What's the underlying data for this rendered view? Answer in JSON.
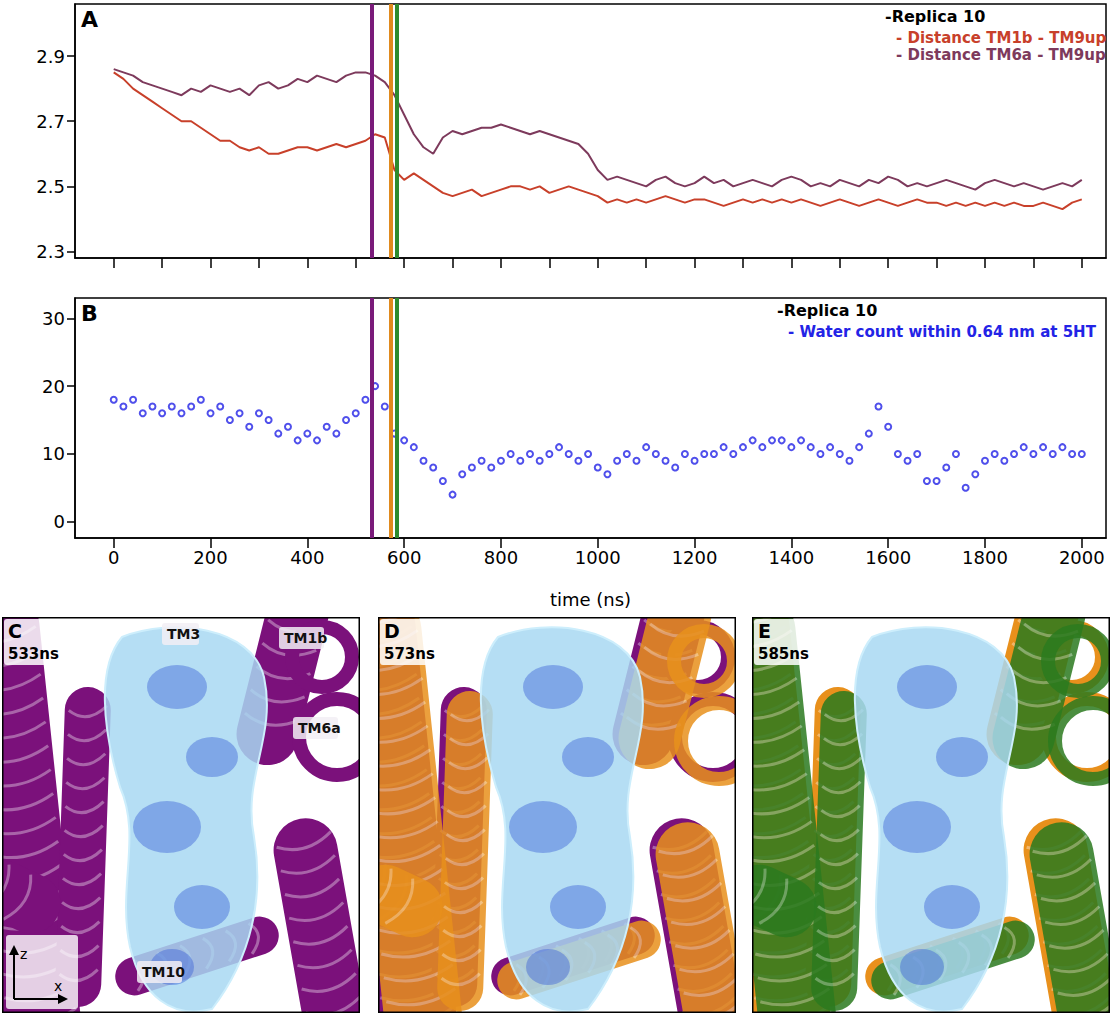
{
  "chart_data": [
    {
      "type": "line",
      "panel_label": "A",
      "legend_title": "-Replica 10",
      "x": [
        0,
        20,
        40,
        60,
        80,
        100,
        120,
        140,
        160,
        180,
        200,
        220,
        240,
        260,
        280,
        300,
        320,
        340,
        360,
        380,
        400,
        420,
        440,
        460,
        480,
        500,
        520,
        540,
        560,
        580,
        600,
        620,
        640,
        660,
        680,
        700,
        720,
        740,
        760,
        780,
        800,
        820,
        840,
        860,
        880,
        900,
        920,
        940,
        960,
        980,
        1000,
        1020,
        1040,
        1060,
        1080,
        1100,
        1120,
        1140,
        1160,
        1180,
        1200,
        1220,
        1240,
        1260,
        1280,
        1300,
        1320,
        1340,
        1360,
        1380,
        1400,
        1420,
        1440,
        1460,
        1480,
        1500,
        1520,
        1540,
        1560,
        1580,
        1600,
        1620,
        1640,
        1660,
        1680,
        1700,
        1720,
        1740,
        1760,
        1780,
        1800,
        1820,
        1840,
        1860,
        1880,
        1900,
        1920,
        1940,
        1960,
        1980,
        2000
      ],
      "series": [
        {
          "name": "- Distance TM1b - TM9up",
          "color": "#c8402a",
          "values": [
            2.85,
            2.83,
            2.8,
            2.78,
            2.76,
            2.74,
            2.72,
            2.7,
            2.7,
            2.68,
            2.66,
            2.64,
            2.64,
            2.62,
            2.61,
            2.62,
            2.6,
            2.6,
            2.61,
            2.62,
            2.62,
            2.61,
            2.62,
            2.63,
            2.62,
            2.63,
            2.64,
            2.66,
            2.65,
            2.55,
            2.52,
            2.54,
            2.52,
            2.5,
            2.48,
            2.47,
            2.48,
            2.49,
            2.47,
            2.48,
            2.49,
            2.5,
            2.5,
            2.49,
            2.5,
            2.48,
            2.49,
            2.5,
            2.49,
            2.48,
            2.47,
            2.45,
            2.46,
            2.45,
            2.46,
            2.45,
            2.46,
            2.47,
            2.46,
            2.45,
            2.46,
            2.46,
            2.45,
            2.44,
            2.45,
            2.46,
            2.45,
            2.46,
            2.45,
            2.46,
            2.45,
            2.46,
            2.45,
            2.44,
            2.45,
            2.46,
            2.45,
            2.44,
            2.45,
            2.46,
            2.45,
            2.44,
            2.45,
            2.46,
            2.45,
            2.45,
            2.44,
            2.45,
            2.44,
            2.45,
            2.44,
            2.45,
            2.44,
            2.45,
            2.44,
            2.44,
            2.45,
            2.44,
            2.43,
            2.45,
            2.46
          ]
        },
        {
          "name": "- Distance TM6a - TM9up",
          "color": "#7d3a5c",
          "values": [
            2.86,
            2.85,
            2.84,
            2.82,
            2.81,
            2.8,
            2.79,
            2.78,
            2.8,
            2.79,
            2.81,
            2.8,
            2.79,
            2.8,
            2.78,
            2.81,
            2.82,
            2.8,
            2.81,
            2.83,
            2.82,
            2.84,
            2.83,
            2.82,
            2.84,
            2.85,
            2.85,
            2.84,
            2.82,
            2.78,
            2.72,
            2.66,
            2.62,
            2.6,
            2.65,
            2.67,
            2.66,
            2.67,
            2.68,
            2.68,
            2.69,
            2.68,
            2.67,
            2.66,
            2.67,
            2.66,
            2.65,
            2.64,
            2.63,
            2.6,
            2.55,
            2.52,
            2.53,
            2.52,
            2.51,
            2.5,
            2.52,
            2.53,
            2.51,
            2.5,
            2.51,
            2.53,
            2.51,
            2.52,
            2.5,
            2.51,
            2.52,
            2.51,
            2.5,
            2.52,
            2.53,
            2.52,
            2.5,
            2.51,
            2.5,
            2.52,
            2.51,
            2.5,
            2.52,
            2.51,
            2.53,
            2.52,
            2.5,
            2.51,
            2.5,
            2.51,
            2.52,
            2.51,
            2.5,
            2.49,
            2.51,
            2.52,
            2.51,
            2.5,
            2.51,
            2.5,
            2.49,
            2.5,
            2.51,
            2.5,
            2.52
          ]
        }
      ],
      "xlim": [
        -80,
        2050
      ],
      "xticks": [
        0,
        100,
        200,
        300,
        400,
        500,
        600,
        700,
        800,
        900,
        1000,
        1100,
        1200,
        1300,
        1400,
        1500,
        1600,
        1700,
        1800,
        1900,
        2000
      ],
      "ylim": [
        2.28,
        3.06
      ],
      "yticks": [
        2.3,
        2.5,
        2.7,
        2.9
      ],
      "tick_labels": "y",
      "grid": false,
      "legend": "top-right",
      "vlines": [
        {
          "x": 533,
          "color": "#7a1b7a"
        },
        {
          "x": 573,
          "color": "#e08a1e"
        },
        {
          "x": 585,
          "color": "#2e8b2e"
        }
      ]
    },
    {
      "type": "scatter",
      "panel_label": "B",
      "legend_title": "-Replica 10",
      "xlabel": "time (ns)",
      "x": [
        0,
        20,
        40,
        60,
        80,
        100,
        120,
        140,
        160,
        180,
        200,
        220,
        240,
        260,
        280,
        300,
        320,
        340,
        360,
        380,
        400,
        420,
        440,
        460,
        480,
        500,
        520,
        540,
        560,
        580,
        600,
        620,
        640,
        660,
        680,
        700,
        720,
        740,
        760,
        780,
        800,
        820,
        840,
        860,
        880,
        900,
        920,
        940,
        960,
        980,
        1000,
        1020,
        1040,
        1060,
        1080,
        1100,
        1120,
        1140,
        1160,
        1180,
        1200,
        1220,
        1240,
        1260,
        1280,
        1300,
        1320,
        1340,
        1360,
        1380,
        1400,
        1420,
        1440,
        1460,
        1480,
        1500,
        1520,
        1540,
        1560,
        1580,
        1600,
        1620,
        1640,
        1660,
        1680,
        1700,
        1720,
        1740,
        1760,
        1780,
        1800,
        1820,
        1840,
        1860,
        1880,
        1900,
        1920,
        1940,
        1960,
        1980,
        2000
      ],
      "series": [
        {
          "name": "- Water count within 0.64 nm at 5HT",
          "color": "#2323e6",
          "marker": "hollow",
          "values": [
            18,
            17,
            18,
            16,
            17,
            16,
            17,
            16,
            17,
            18,
            16,
            17,
            15,
            16,
            14,
            16,
            15,
            13,
            14,
            12,
            13,
            12,
            14,
            13,
            15,
            16,
            18,
            20,
            17,
            13,
            12,
            11,
            9,
            8,
            6,
            4,
            7,
            8,
            9,
            8,
            9,
            10,
            9,
            10,
            9,
            10,
            11,
            10,
            9,
            10,
            8,
            7,
            9,
            10,
            9,
            11,
            10,
            9,
            8,
            10,
            9,
            10,
            10,
            11,
            10,
            11,
            12,
            11,
            12,
            12,
            11,
            12,
            11,
            10,
            11,
            10,
            9,
            11,
            13,
            17,
            14,
            10,
            9,
            10,
            6,
            6,
            8,
            10,
            5,
            7,
            9,
            10,
            9,
            10,
            11,
            10,
            11,
            10,
            11,
            10,
            10
          ]
        }
      ],
      "xlim": [
        -80,
        2050
      ],
      "xticks": [
        0,
        200,
        400,
        600,
        800,
        1000,
        1200,
        1400,
        1600,
        1800,
        2000
      ],
      "ylim": [
        -2.4,
        33
      ],
      "yticks": [
        0,
        10,
        20,
        30
      ],
      "grid": false,
      "legend": "top-right",
      "vlines": [
        {
          "x": 533,
          "color": "#7a1b7a"
        },
        {
          "x": 573,
          "color": "#e08a1e"
        },
        {
          "x": 585,
          "color": "#2e8b2e"
        }
      ]
    }
  ],
  "structure_panels": [
    {
      "label": "C",
      "time": "533ns",
      "colors": [
        "#7b117b"
      ],
      "helix_labels": [
        "TM3",
        "TM1b",
        "TM6a",
        "TM10"
      ]
    },
    {
      "label": "D",
      "time": "573ns",
      "colors": [
        "#7b117b",
        "#e8901c"
      ]
    },
    {
      "label": "E",
      "time": "585ns",
      "colors": [
        "#e8901c",
        "#2b7a1f"
      ]
    }
  ],
  "axis_letters": [
    "z",
    "x"
  ]
}
